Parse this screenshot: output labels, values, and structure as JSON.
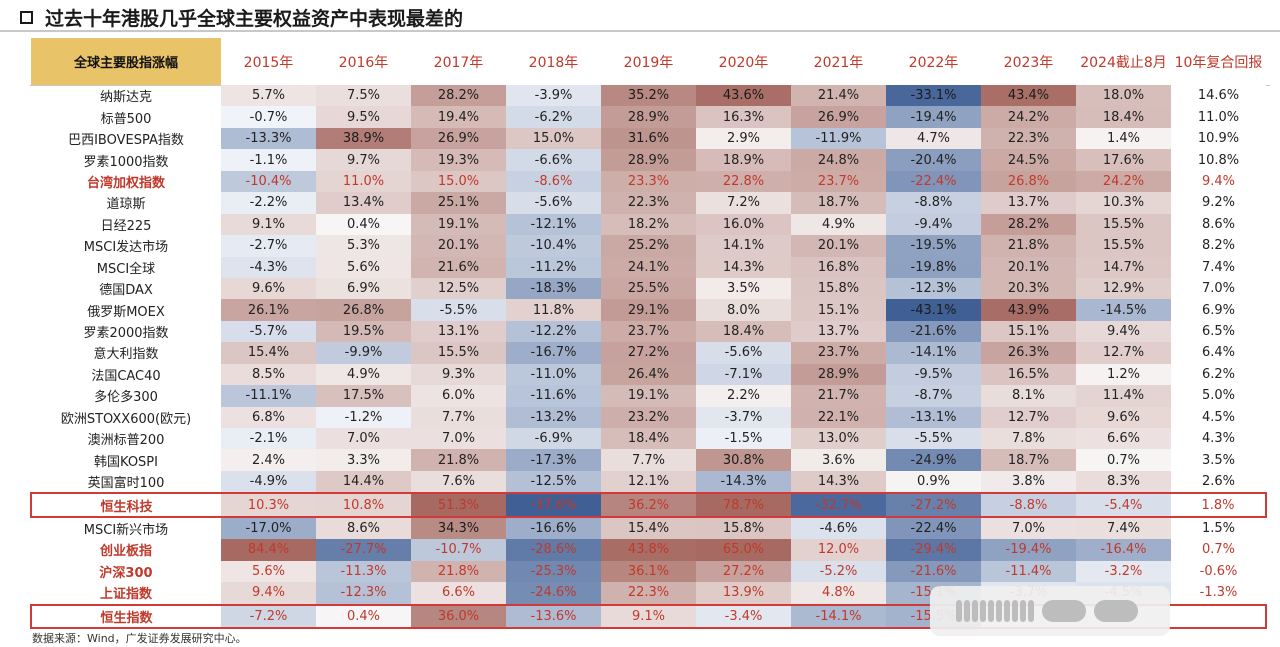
{
  "title": "过去十年港股几乎全球主要权益资产中表现最差的",
  "source": "数据来源：Wind，广发证券发展研究中心。",
  "table": {
    "corner": "全球主要股指涨幅",
    "headers": [
      "2015年",
      "2016年",
      "2017年",
      "2018年",
      "2019年",
      "2020年",
      "2021年",
      "2022年",
      "2023年",
      "2024截止8月",
      "10年复合回报"
    ],
    "rows": [
      {
        "name": "纳斯达克",
        "values": [
          "5.7%",
          "7.5%",
          "28.2%",
          "-3.9%",
          "35.2%",
          "43.6%",
          "21.4%",
          "-33.1%",
          "43.4%",
          "18.0%",
          "14.6%"
        ]
      },
      {
        "name": "标普500",
        "values": [
          "-0.7%",
          "9.5%",
          "19.4%",
          "-6.2%",
          "28.9%",
          "16.3%",
          "26.9%",
          "-19.4%",
          "24.2%",
          "18.4%",
          "11.0%"
        ]
      },
      {
        "name": "巴西IBOVESPA指数",
        "values": [
          "-13.3%",
          "38.9%",
          "26.9%",
          "15.0%",
          "31.6%",
          "2.9%",
          "-11.9%",
          "4.7%",
          "22.3%",
          "1.4%",
          "10.9%"
        ]
      },
      {
        "name": "罗素1000指数",
        "values": [
          "-1.1%",
          "9.7%",
          "19.3%",
          "-6.6%",
          "28.9%",
          "18.9%",
          "24.8%",
          "-20.4%",
          "24.5%",
          "17.6%",
          "10.8%"
        ]
      },
      {
        "name": "台湾加权指数",
        "highlight": "red",
        "values": [
          "-10.4%",
          "11.0%",
          "15.0%",
          "-8.6%",
          "23.3%",
          "22.8%",
          "23.7%",
          "-22.4%",
          "26.8%",
          "24.2%",
          "9.4%"
        ]
      },
      {
        "name": "道琼斯",
        "values": [
          "-2.2%",
          "13.4%",
          "25.1%",
          "-5.6%",
          "22.3%",
          "7.2%",
          "18.7%",
          "-8.8%",
          "13.7%",
          "10.3%",
          "9.2%"
        ]
      },
      {
        "name": "日经225",
        "values": [
          "9.1%",
          "0.4%",
          "19.1%",
          "-12.1%",
          "18.2%",
          "16.0%",
          "4.9%",
          "-9.4%",
          "28.2%",
          "15.5%",
          "8.6%"
        ]
      },
      {
        "name": "MSCI发达市场",
        "values": [
          "-2.7%",
          "5.3%",
          "20.1%",
          "-10.4%",
          "25.2%",
          "14.1%",
          "20.1%",
          "-19.5%",
          "21.8%",
          "15.5%",
          "8.2%"
        ]
      },
      {
        "name": "MSCI全球",
        "values": [
          "-4.3%",
          "5.6%",
          "21.6%",
          "-11.2%",
          "24.1%",
          "14.3%",
          "16.8%",
          "-19.8%",
          "20.1%",
          "14.7%",
          "7.4%"
        ]
      },
      {
        "name": "德国DAX",
        "values": [
          "9.6%",
          "6.9%",
          "12.5%",
          "-18.3%",
          "25.5%",
          "3.5%",
          "15.8%",
          "-12.3%",
          "20.3%",
          "12.9%",
          "7.0%"
        ]
      },
      {
        "name": "俄罗斯MOEX",
        "values": [
          "26.1%",
          "26.8%",
          "-5.5%",
          "11.8%",
          "29.1%",
          "8.0%",
          "15.1%",
          "-43.1%",
          "43.9%",
          "-14.5%",
          "6.9%"
        ]
      },
      {
        "name": "罗素2000指数",
        "values": [
          "-5.7%",
          "19.5%",
          "13.1%",
          "-12.2%",
          "23.7%",
          "18.4%",
          "13.7%",
          "-21.6%",
          "15.1%",
          "9.4%",
          "6.5%"
        ]
      },
      {
        "name": "意大利指数",
        "values": [
          "15.4%",
          "-9.9%",
          "15.5%",
          "-16.7%",
          "27.2%",
          "-5.6%",
          "23.7%",
          "-14.1%",
          "26.3%",
          "12.7%",
          "6.4%"
        ]
      },
      {
        "name": "法国CAC40",
        "values": [
          "8.5%",
          "4.9%",
          "9.3%",
          "-11.0%",
          "26.4%",
          "-7.1%",
          "28.9%",
          "-9.5%",
          "16.5%",
          "1.2%",
          "6.2%"
        ]
      },
      {
        "name": "多伦多300",
        "values": [
          "-11.1%",
          "17.5%",
          "6.0%",
          "-11.6%",
          "19.1%",
          "2.2%",
          "21.7%",
          "-8.7%",
          "8.1%",
          "11.4%",
          "5.0%"
        ]
      },
      {
        "name": "欧洲STOXX600(欧元)",
        "values": [
          "6.8%",
          "-1.2%",
          "7.7%",
          "-13.2%",
          "23.2%",
          "-3.7%",
          "22.1%",
          "-13.1%",
          "12.7%",
          "9.6%",
          "4.5%"
        ]
      },
      {
        "name": "澳洲标普200",
        "values": [
          "-2.1%",
          "7.0%",
          "7.0%",
          "-6.9%",
          "18.4%",
          "-1.5%",
          "13.0%",
          "-5.5%",
          "7.8%",
          "6.6%",
          "4.3%"
        ]
      },
      {
        "name": "韩国KOSPI",
        "values": [
          "2.4%",
          "3.3%",
          "21.8%",
          "-17.3%",
          "7.7%",
          "30.8%",
          "3.6%",
          "-24.9%",
          "18.7%",
          "0.7%",
          "3.5%"
        ]
      },
      {
        "name": "英国富时100",
        "values": [
          "-4.9%",
          "14.4%",
          "7.6%",
          "-12.5%",
          "12.1%",
          "-14.3%",
          "14.3%",
          "0.9%",
          "3.8%",
          "8.3%",
          "2.6%"
        ]
      },
      {
        "name": "恒生科技",
        "highlight": "redbox",
        "values": [
          "10.3%",
          "10.8%",
          "51.3%",
          "-37.6%",
          "36.2%",
          "78.7%",
          "-32.7%",
          "-27.2%",
          "-8.8%",
          "-5.4%",
          "1.8%"
        ]
      },
      {
        "name": "MSCI新兴市场",
        "values": [
          "-17.0%",
          "8.6%",
          "34.3%",
          "-16.6%",
          "15.4%",
          "15.8%",
          "-4.6%",
          "-22.4%",
          "7.0%",
          "7.4%",
          "1.5%"
        ]
      },
      {
        "name": "创业板指",
        "highlight": "red",
        "values": [
          "84.4%",
          "-27.7%",
          "-10.7%",
          "-28.6%",
          "43.8%",
          "65.0%",
          "12.0%",
          "-29.4%",
          "-19.4%",
          "-16.4%",
          "0.7%"
        ]
      },
      {
        "name": "沪深300",
        "highlight": "red",
        "values": [
          "5.6%",
          "-11.3%",
          "21.8%",
          "-25.3%",
          "36.1%",
          "27.2%",
          "-5.2%",
          "-21.6%",
          "-11.4%",
          "-3.2%",
          "-0.6%"
        ]
      },
      {
        "name": "上证指数",
        "highlight": "red",
        "values": [
          "9.4%",
          "-12.3%",
          "6.6%",
          "-24.6%",
          "22.3%",
          "13.9%",
          "4.8%",
          "-15.1%",
          "-3.7%",
          "-4.5%",
          "-1.3%"
        ]
      },
      {
        "name": "恒生指数",
        "highlight": "redbox",
        "values": [
          "-7.2%",
          "0.4%",
          "36.0%",
          "-13.6%",
          "9.1%",
          "-3.4%",
          "-14.1%",
          "-15.5%",
          "",
          "",
          ""
        ]
      }
    ]
  },
  "colors": {
    "positive": "#a66a62",
    "negative": "#3f5f95",
    "header_gold": "#e9c368",
    "accent_red": "#c0392b"
  }
}
